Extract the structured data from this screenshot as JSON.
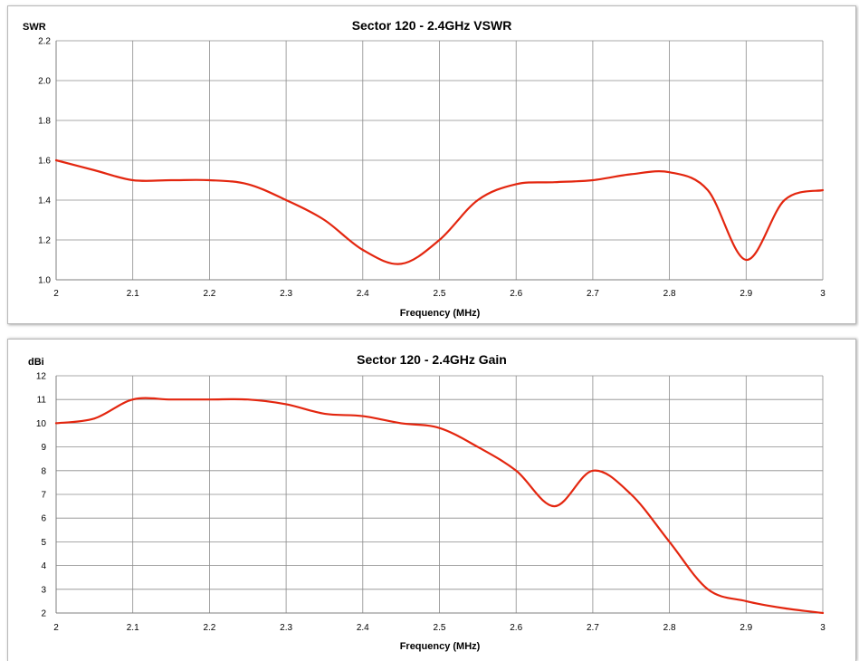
{
  "chart_data": [
    {
      "type": "line",
      "title": "Sector 120 - 2.4GHz VSWR",
      "xlabel": "Frequency (MHz)",
      "ylabel": "SWR",
      "xlim": [
        2,
        3
      ],
      "ylim": [
        1.0,
        2.2
      ],
      "x_ticks": [
        "2",
        "2.1",
        "2.2",
        "2.3",
        "2.4",
        "2.5",
        "2.6",
        "2.7",
        "2.8",
        "2.9",
        "3"
      ],
      "y_ticks": [
        "1.0",
        "1.2",
        "1.4",
        "1.6",
        "1.8",
        "2.0",
        "2.2"
      ],
      "grid": true,
      "line_color": "#e3260f",
      "series": [
        {
          "x": [
            2.0,
            2.05,
            2.1,
            2.15,
            2.2,
            2.25,
            2.3,
            2.35,
            2.4,
            2.45,
            2.5,
            2.55,
            2.6,
            2.65,
            2.7,
            2.75,
            2.8,
            2.85,
            2.9,
            2.95,
            3.0
          ],
          "y": [
            1.6,
            1.55,
            1.5,
            1.5,
            1.5,
            1.48,
            1.4,
            1.3,
            1.15,
            1.08,
            1.2,
            1.4,
            1.48,
            1.49,
            1.5,
            1.53,
            1.54,
            1.45,
            1.1,
            1.4,
            1.45
          ]
        }
      ]
    },
    {
      "type": "line",
      "title": "Sector 120 - 2.4GHz Gain",
      "xlabel": "Frequency (MHz)",
      "ylabel": "dBi",
      "xlim": [
        2,
        3
      ],
      "ylim": [
        2,
        12
      ],
      "x_ticks": [
        "2",
        "2.1",
        "2.2",
        "2.3",
        "2.4",
        "2.5",
        "2.6",
        "2.7",
        "2.8",
        "2.9",
        "3"
      ],
      "y_ticks": [
        "2",
        "3",
        "4",
        "5",
        "6",
        "7",
        "8",
        "9",
        "10",
        "11",
        "12"
      ],
      "grid": true,
      "line_color": "#e3260f",
      "series": [
        {
          "x": [
            2.0,
            2.05,
            2.1,
            2.15,
            2.2,
            2.25,
            2.3,
            2.35,
            2.4,
            2.45,
            2.5,
            2.55,
            2.6,
            2.65,
            2.7,
            2.75,
            2.8,
            2.85,
            2.9,
            2.95,
            3.0
          ],
          "y": [
            10,
            10.2,
            11,
            11,
            11,
            11,
            10.8,
            10.4,
            10.3,
            10,
            9.8,
            9.0,
            8.0,
            6.5,
            8.0,
            7.0,
            5.0,
            3.0,
            2.5,
            2.2,
            2.0
          ]
        }
      ]
    }
  ]
}
